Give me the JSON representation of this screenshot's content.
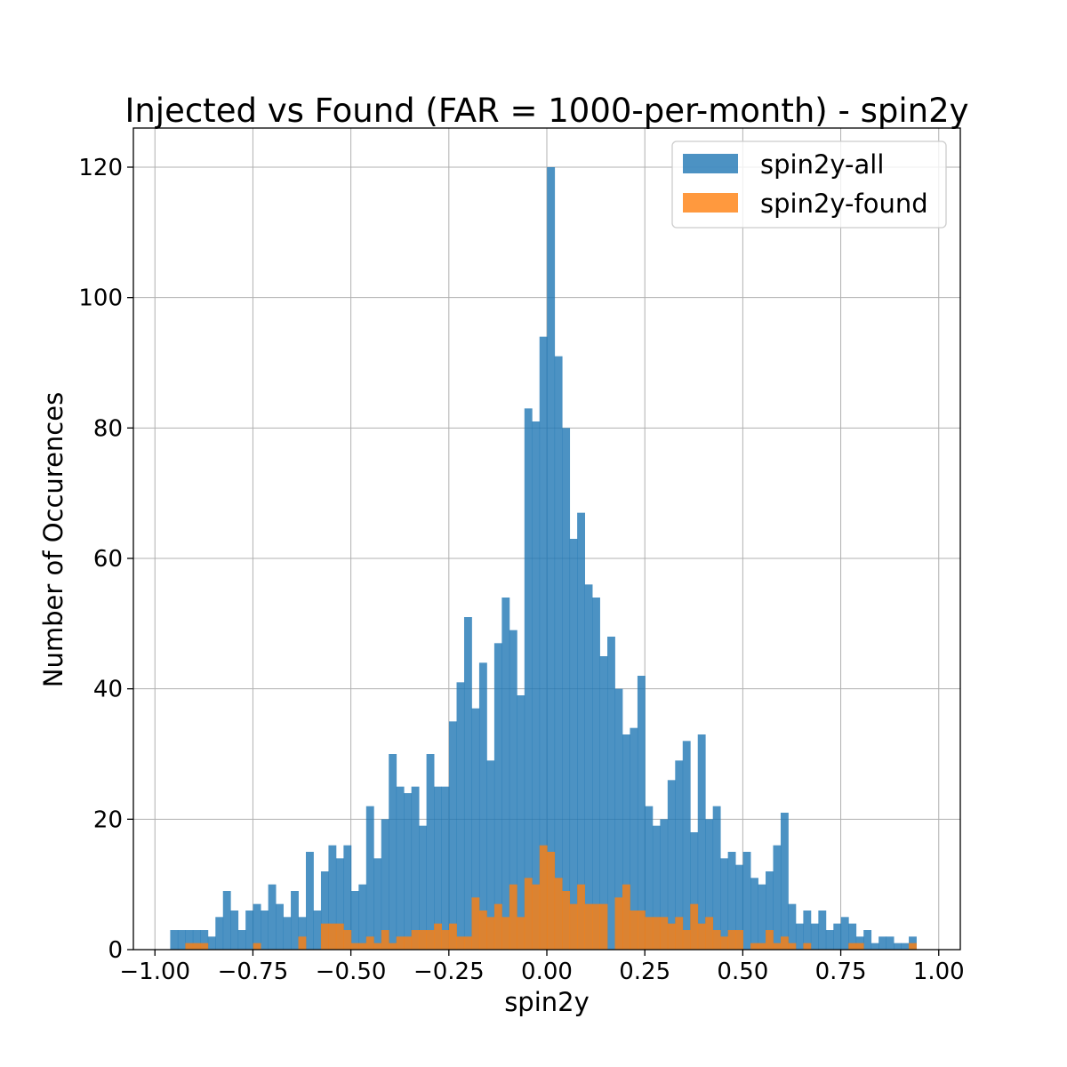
{
  "chart_data": {
    "type": "bar",
    "title": "Injected vs Found (FAR = 1000-per-month) - spin2y",
    "xlabel": "spin2y",
    "ylabel": "Number of Occurences",
    "xlim": [
      -1.055,
      1.055
    ],
    "ylim": [
      0,
      126
    ],
    "x_ticks": [
      -1.0,
      -0.75,
      -0.5,
      -0.25,
      0.0,
      0.25,
      0.5,
      0.75,
      1.0
    ],
    "x_tick_labels": [
      "−1.00",
      "−0.75",
      "−0.50",
      "−0.25",
      "0.00",
      "0.25",
      "0.50",
      "0.75",
      "1.00"
    ],
    "y_ticks": [
      0,
      20,
      40,
      60,
      80,
      100,
      120
    ],
    "y_tick_labels": [
      "0",
      "20",
      "40",
      "60",
      "80",
      "100",
      "120"
    ],
    "grid": true,
    "legend_position": "top-right",
    "bins": {
      "start": -0.961,
      "width": 0.01923,
      "count": 100
    },
    "series": [
      {
        "name": "spin2y-all",
        "color": "#1f77b4",
        "alpha": 0.8,
        "values": [
          3,
          3,
          3,
          3,
          3,
          2,
          5,
          9,
          6,
          3,
          6,
          7,
          6,
          10,
          7,
          5,
          9,
          5,
          15,
          6,
          12,
          16,
          14,
          16,
          9,
          10,
          22,
          14,
          20,
          30,
          25,
          24,
          25,
          19,
          30,
          25,
          25,
          35,
          41,
          51,
          37,
          44,
          29,
          47,
          54,
          49,
          39,
          83,
          81,
          94,
          120,
          91,
          80,
          63,
          67,
          56,
          54,
          45,
          48,
          40,
          33,
          34,
          42,
          22,
          19,
          20,
          26,
          29,
          32,
          18,
          33,
          20,
          22,
          14,
          15,
          13,
          15,
          11,
          10,
          12,
          16,
          21,
          7,
          4,
          6,
          4,
          6,
          3,
          4,
          5,
          4,
          2,
          3,
          1,
          2,
          2,
          1,
          1,
          2,
          0
        ]
      },
      {
        "name": "spin2y-found",
        "color": "#ff7f0e",
        "alpha": 0.8,
        "values": [
          0,
          0,
          1,
          1,
          1,
          0,
          0,
          0,
          0,
          0,
          0,
          1,
          0,
          0,
          0,
          0,
          0,
          2,
          0,
          0,
          4,
          4,
          4,
          3,
          1,
          1,
          2,
          1,
          3,
          1,
          2,
          2,
          3,
          3,
          3,
          4,
          3,
          4,
          2,
          2,
          8,
          6,
          5,
          7,
          5,
          10,
          5,
          11,
          10,
          16,
          15,
          11,
          9,
          7,
          10,
          7,
          7,
          7,
          0,
          8,
          10,
          6,
          6,
          5,
          5,
          5,
          4,
          5,
          3,
          7,
          4,
          5,
          3,
          2,
          3,
          3,
          0,
          1,
          1,
          3,
          1,
          2,
          1,
          0,
          1,
          0,
          0,
          0,
          0,
          0,
          1,
          1,
          0,
          0,
          0,
          0,
          0,
          0,
          1,
          0
        ]
      }
    ]
  }
}
